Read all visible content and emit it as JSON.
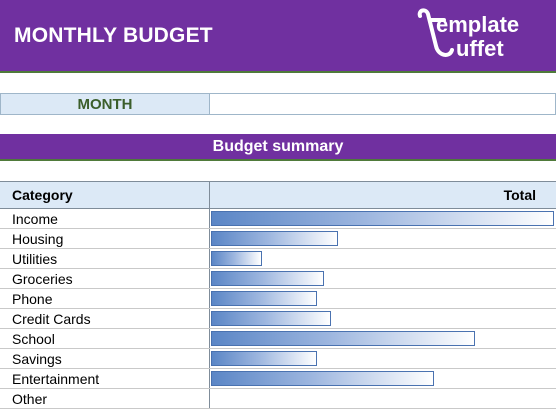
{
  "header": {
    "title": "MONTHLY BUDGET",
    "logo_text_line1": "emplate",
    "logo_text_line2": "uffet"
  },
  "month": {
    "label": "MONTH",
    "value": ""
  },
  "summary": {
    "title": "Budget summary"
  },
  "table": {
    "col_category": "Category",
    "col_total": "Total",
    "max_value": 1.0,
    "rows": [
      {
        "category": "Income",
        "value": 1.0
      },
      {
        "category": "Housing",
        "value": 0.37
      },
      {
        "category": "Utilities",
        "value": 0.15
      },
      {
        "category": "Groceries",
        "value": 0.33
      },
      {
        "category": "Phone",
        "value": 0.31
      },
      {
        "category": "Credit Cards",
        "value": 0.35
      },
      {
        "category": "School",
        "value": 0.77
      },
      {
        "category": "Savings",
        "value": 0.31
      },
      {
        "category": "Entertainment",
        "value": 0.65
      },
      {
        "category": "Other",
        "value": 0
      }
    ]
  },
  "colors": {
    "header_bg": "#7030a0",
    "bar_fill": "#5b86c6",
    "month_label_text": "#3b5e2b"
  }
}
